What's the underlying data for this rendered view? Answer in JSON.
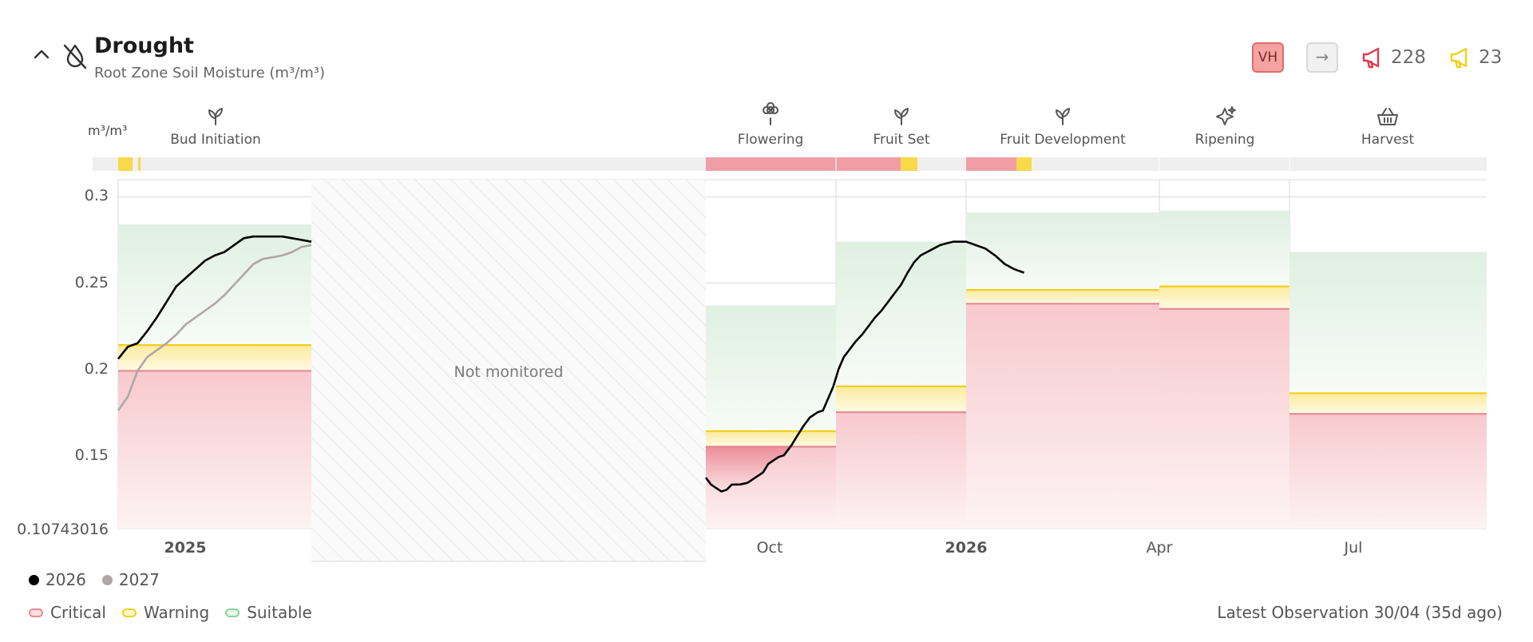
{
  "header": {
    "title": "Drought",
    "subtitle": "Root Zone Soil Moisture (m³/m³)",
    "risk_badge": "VH",
    "arrow_symbol": "→",
    "critical_alert_count": "228",
    "warning_alert_count": "23",
    "critical_color": "#e0394d",
    "warning_color": "#f2cf1d"
  },
  "chart_data": {
    "type": "line",
    "title": "Root Zone Soil Moisture (m³/m³)",
    "ylabel": "m³/m³",
    "ylim": [
      0.10743016,
      0.31
    ],
    "y_ticks": [
      "0.3",
      "0.25",
      "0.2",
      "0.15",
      "0.10743016"
    ],
    "x_ticks": [
      "2025",
      "Oct",
      "2026",
      "Apr",
      "Jul"
    ],
    "x_ticks_bold": [
      "2025",
      "2026"
    ],
    "not_monitored_label": "Not monitored",
    "stages": [
      {
        "name": "Bud Initiation",
        "icon": "sprout-icon"
      },
      {
        "name": "Flowering",
        "icon": "flower-icon"
      },
      {
        "name": "Fruit Set",
        "icon": "sprout-icon"
      },
      {
        "name": "Fruit Development",
        "icon": "sprout-icon"
      },
      {
        "name": "Ripening",
        "icon": "sparkle-icon"
      },
      {
        "name": "Harvest",
        "icon": "basket-icon"
      }
    ],
    "thresholds": [
      {
        "period": "Bud Initiation",
        "critical": 0.199,
        "warning": 0.214,
        "suitable_top": 0.284
      },
      {
        "period": "Flowering",
        "critical": 0.155,
        "warning": 0.164,
        "suitable_top": 0.237
      },
      {
        "period": "Fruit Set",
        "critical": 0.175,
        "warning": 0.19,
        "suitable_top": 0.274
      },
      {
        "period": "Fruit Development",
        "critical": 0.238,
        "warning": 0.246,
        "suitable_top": 0.291
      },
      {
        "period": "Ripening",
        "critical": 0.235,
        "warning": 0.248,
        "suitable_top": 0.292
      },
      {
        "period": "Harvest",
        "critical": 0.174,
        "warning": 0.186,
        "suitable_top": 0.268
      }
    ],
    "series": [
      {
        "name": "2026",
        "color": "#000000",
        "segments": [
          [
            [
              0.0,
              0.206
            ],
            [
              0.05,
              0.213
            ],
            [
              0.1,
              0.215
            ],
            [
              0.15,
              0.222
            ],
            [
              0.2,
              0.23
            ],
            [
              0.25,
              0.239
            ],
            [
              0.3,
              0.248
            ],
            [
              0.35,
              0.253
            ],
            [
              0.4,
              0.258
            ],
            [
              0.45,
              0.263
            ],
            [
              0.5,
              0.266
            ],
            [
              0.55,
              0.268
            ],
            [
              0.6,
              0.272
            ],
            [
              0.65,
              0.276
            ],
            [
              0.7,
              0.277
            ],
            [
              0.75,
              0.277
            ],
            [
              0.8,
              0.277
            ],
            [
              0.85,
              0.277
            ],
            [
              0.9,
              0.276
            ],
            [
              0.95,
              0.275
            ],
            [
              1.0,
              0.274
            ]
          ],
          [
            [
              2.0,
              0.137
            ],
            [
              2.04,
              0.133
            ],
            [
              2.08,
              0.131
            ],
            [
              2.12,
              0.129
            ],
            [
              2.16,
              0.13
            ],
            [
              2.2,
              0.133
            ],
            [
              2.26,
              0.133
            ],
            [
              2.32,
              0.134
            ],
            [
              2.38,
              0.137
            ],
            [
              2.44,
              0.14
            ],
            [
              2.48,
              0.145
            ],
            [
              2.52,
              0.147
            ],
            [
              2.56,
              0.149
            ],
            [
              2.6,
              0.15
            ],
            [
              2.63,
              0.153
            ],
            [
              2.66,
              0.156
            ],
            [
              2.7,
              0.161
            ],
            [
              2.75,
              0.167
            ],
            [
              2.8,
              0.172
            ],
            [
              2.86,
              0.175
            ],
            [
              2.9,
              0.176
            ],
            [
              2.94,
              0.183
            ],
            [
              2.98,
              0.19
            ],
            [
              3.02,
              0.2
            ],
            [
              3.06,
              0.207
            ],
            [
              3.1,
              0.211
            ],
            [
              3.15,
              0.216
            ],
            [
              3.2,
              0.22
            ],
            [
              3.25,
              0.225
            ],
            [
              3.3,
              0.23
            ],
            [
              3.35,
              0.234
            ],
            [
              3.4,
              0.239
            ],
            [
              3.45,
              0.244
            ],
            [
              3.5,
              0.249
            ],
            [
              3.55,
              0.256
            ],
            [
              3.6,
              0.262
            ],
            [
              3.65,
              0.266
            ],
            [
              3.7,
              0.268
            ],
            [
              3.75,
              0.27
            ],
            [
              3.8,
              0.272
            ],
            [
              3.85,
              0.273
            ],
            [
              3.9,
              0.274
            ],
            [
              3.95,
              0.274
            ],
            [
              4.0,
              0.274
            ],
            [
              4.05,
              0.272
            ],
            [
              4.1,
              0.27
            ],
            [
              4.15,
              0.266
            ],
            [
              4.2,
              0.261
            ],
            [
              4.25,
              0.258
            ],
            [
              4.3,
              0.256
            ]
          ]
        ]
      },
      {
        "name": "2027",
        "color": "#b0a6a6",
        "segments": [
          [
            [
              0.0,
              0.176
            ],
            [
              0.05,
              0.184
            ],
            [
              0.1,
              0.199
            ],
            [
              0.15,
              0.207
            ],
            [
              0.2,
              0.211
            ],
            [
              0.25,
              0.215
            ],
            [
              0.3,
              0.22
            ],
            [
              0.35,
              0.226
            ],
            [
              0.4,
              0.23
            ],
            [
              0.45,
              0.234
            ],
            [
              0.5,
              0.238
            ],
            [
              0.55,
              0.243
            ],
            [
              0.6,
              0.249
            ],
            [
              0.65,
              0.255
            ],
            [
              0.7,
              0.261
            ],
            [
              0.75,
              0.264
            ],
            [
              0.8,
              0.265
            ],
            [
              0.85,
              0.266
            ],
            [
              0.9,
              0.268
            ],
            [
              0.95,
              0.271
            ],
            [
              1.0,
              0.272
            ]
          ]
        ]
      }
    ],
    "legend": [
      "2026",
      "2027"
    ],
    "zones_legend": [
      "Critical",
      "Warning",
      "Suitable"
    ],
    "zone_colors": {
      "critical": "#e58a93",
      "warning": "#f2cf1d",
      "suitable": "#8fd39a"
    },
    "grid": true,
    "latest_observation": "Latest Observation 30/04 (35d ago)"
  }
}
